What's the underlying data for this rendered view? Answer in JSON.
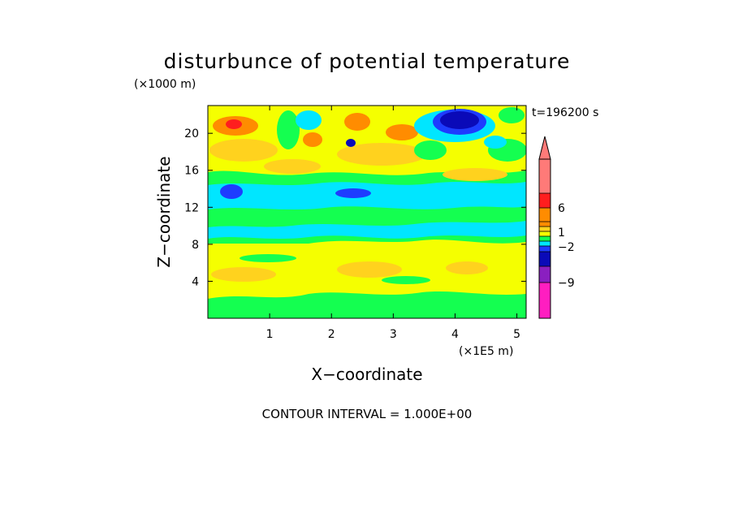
{
  "chart_data": {
    "type": "heatmap",
    "title": "disturbunce of potential temperature",
    "y_scale_label": "(×1000 m)",
    "x_scale_label": "(×1E5 m)",
    "time_label": "t=196200 s",
    "xlabel": "X−coordinate",
    "ylabel": "Z−coordinate",
    "xlim": [
      0,
      5.15
    ],
    "ylim": [
      0,
      23
    ],
    "x_ticks": [
      "1",
      "2",
      "3",
      "4",
      "5"
    ],
    "x_tick_values": [
      1,
      2,
      3,
      4,
      5
    ],
    "y_ticks": [
      "4",
      "8",
      "12",
      "16",
      "20"
    ],
    "y_tick_values": [
      4,
      8,
      12,
      16,
      20
    ],
    "colorbar_labels": [
      "6",
      "1",
      "−2",
      "−9"
    ],
    "colorbar_label_values": [
      6,
      1,
      -2,
      -9
    ],
    "footer": "CONTOUR INTERVAL = 1.000E+00",
    "contour_interval": 1.0,
    "colors": {
      "magenta": "#ff1ec0",
      "purple": "#8a1fc0",
      "dark_blue": "#0a0ab8",
      "blue": "#1e3cff",
      "cyan": "#00e6ff",
      "green": "#14ff50",
      "yellow": "#f5ff00",
      "gold": "#ffd21e",
      "orange": "#ff8c00",
      "red": "#ff1e1e",
      "salmon": "#ff7a78"
    }
  }
}
